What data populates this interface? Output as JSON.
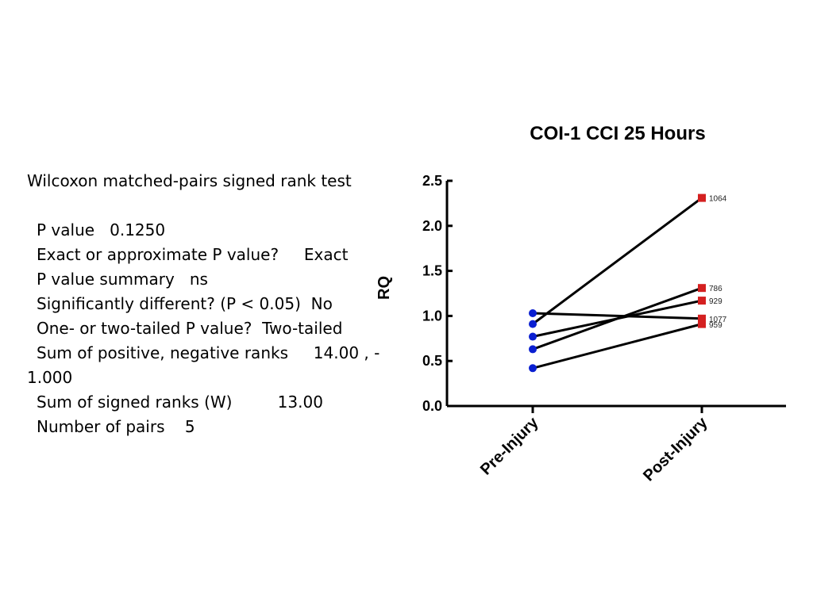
{
  "stats": {
    "test_name": "Wilcoxon matched-pairs signed rank test",
    "rows": [
      {
        "label": "P value",
        "value": "0.1250"
      },
      {
        "label": "Exact or approximate P value?",
        "value": "Exact"
      },
      {
        "label": "P value summary",
        "value": "ns"
      },
      {
        "label": "Significantly different? (P < 0.05)",
        "value": "No"
      },
      {
        "label": "One- or two-tailed P value?",
        "value": "Two-tailed"
      }
    ],
    "ranks_label": "Sum of positive, negative ranks",
    "ranks_value_1": "14.00 , -",
    "ranks_value_2": "1.000",
    "signed_label": "Sum of signed ranks (W)",
    "signed_value": "13.00",
    "pairs_label": "Number of pairs",
    "pairs_value": "5"
  },
  "chart_data": {
    "type": "line",
    "title": "COI-1 CCI 25 Hours",
    "ylabel": "RQ",
    "xlabel": "",
    "categories": [
      "Pre-Injury",
      "Post-Injury"
    ],
    "ylim": [
      0,
      2.5
    ],
    "yticks": [
      "0.0",
      "0.5",
      "1.0",
      "1.5",
      "2.0",
      "2.5"
    ],
    "pairs": [
      {
        "label": "1064",
        "pre": 0.91,
        "post": 2.31
      },
      {
        "label": "786",
        "pre": 0.63,
        "post": 1.31
      },
      {
        "label": "929",
        "pre": 0.77,
        "post": 1.17
      },
      {
        "label": "1077",
        "pre": 1.03,
        "post": 0.97
      },
      {
        "label": "959",
        "pre": 0.42,
        "post": 0.91
      }
    ],
    "pre_color": "#0a1fd1",
    "post_color": "#d42020",
    "line_color": "#000000"
  }
}
